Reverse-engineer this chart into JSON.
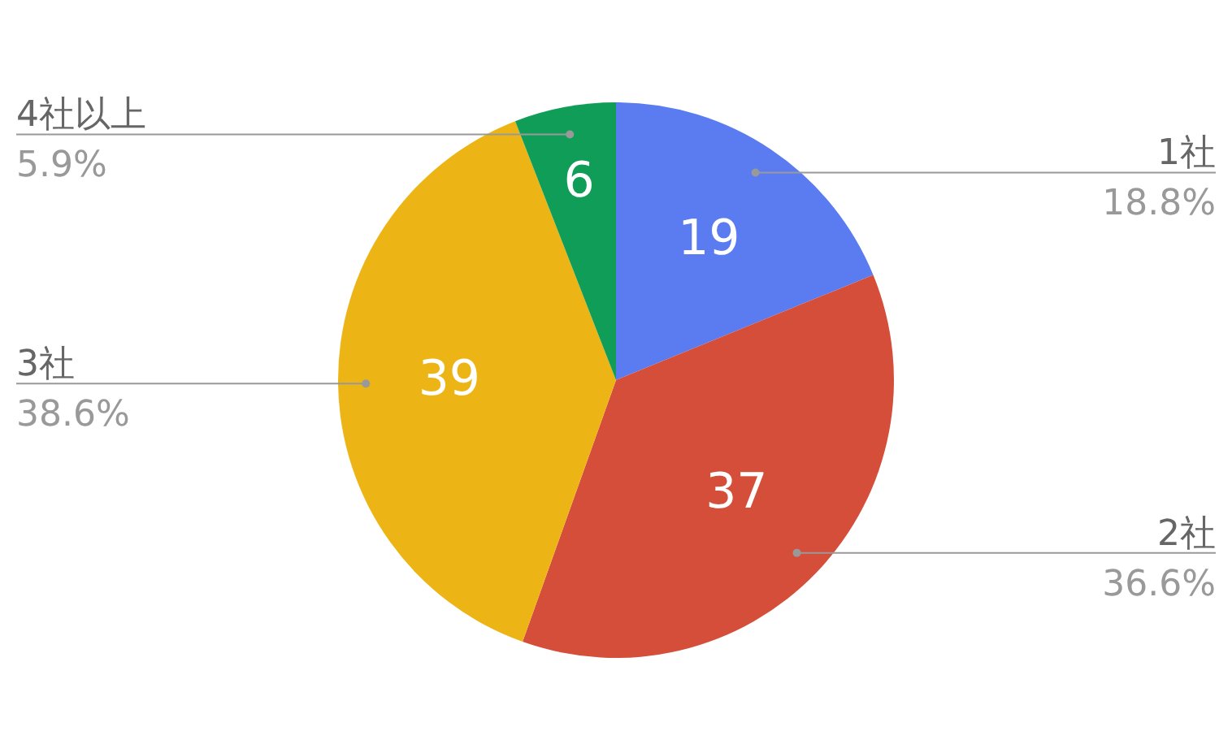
{
  "chart_data": {
    "type": "pie",
    "categories": [
      "1社",
      "2社",
      "3社",
      "4社以上"
    ],
    "values": [
      18.8,
      36.6,
      38.6,
      5.9
    ],
    "colors": [
      "#5b7cf1",
      "#d54e3a",
      "#ecb515",
      "#0f9d58"
    ],
    "value_labels": [
      "19",
      "37",
      "39",
      "6"
    ],
    "annotations": [
      "18.8%",
      "36.6%",
      "38.6%",
      "5.9%"
    ],
    "legend": false
  }
}
